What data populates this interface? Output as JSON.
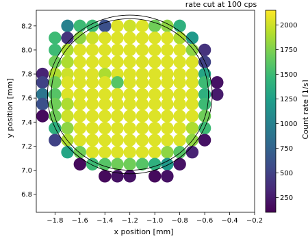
{
  "chart_data": {
    "type": "scatter",
    "title": "rate cut at 100 cps",
    "xlabel": "x position [mm]",
    "ylabel": "y position [mm]",
    "colorbar_label": "Count rate [1/s]",
    "xlim": [
      -1.95,
      -0.2
    ],
    "ylim": [
      6.65,
      8.33
    ],
    "xticks": [
      -1.8,
      -1.6,
      -1.4,
      -1.2,
      -1.0,
      -0.8,
      -0.6,
      -0.4,
      -0.2
    ],
    "xtick_labels": [
      "−1.8",
      "−1.6",
      "−1.4",
      "−1.2",
      "−1.0",
      "−0.8",
      "−0.6",
      "−0.4",
      "−0.2"
    ],
    "yticks": [
      6.8,
      7.0,
      7.2,
      7.4,
      7.6,
      7.8,
      8.0,
      8.2
    ],
    "ytick_labels": [
      "6.8",
      "7.0",
      "7.2",
      "7.4",
      "7.6",
      "7.8",
      "8.0",
      "8.2"
    ],
    "colorbar_range": [
      100,
      2150
    ],
    "colorbar_ticks": [
      250,
      500,
      750,
      1000,
      1250,
      1500,
      1750,
      2000
    ],
    "colorbar_tick_labels": [
      "250",
      "500",
      "750",
      "1000",
      "1250",
      "1500",
      "1750",
      "2000"
    ],
    "colormap": "viridis",
    "circles": [
      {
        "center": [
          -1.2,
          7.63
        ],
        "radius": 0.66
      },
      {
        "center": [
          -1.2,
          7.63
        ],
        "radius": 0.63
      }
    ],
    "grid": false,
    "points": [
      [
        -1.4,
        8.2,
        600
      ],
      [
        -1.2,
        8.2,
        2000
      ],
      [
        -1.0,
        8.2,
        1700
      ],
      [
        -1.7,
        8.2,
        1000
      ],
      [
        -1.6,
        8.2,
        1500
      ],
      [
        -1.5,
        8.2,
        1500
      ],
      [
        -1.3,
        8.2,
        2050
      ],
      [
        -1.1,
        8.2,
        2050
      ],
      [
        -0.9,
        8.2,
        1800
      ],
      [
        -0.8,
        8.2,
        1400
      ],
      [
        -1.8,
        8.1,
        1500
      ],
      [
        -1.7,
        8.1,
        400
      ],
      [
        -1.6,
        8.1,
        1800
      ],
      [
        -1.5,
        8.1,
        2000
      ],
      [
        -1.4,
        8.1,
        2050
      ],
      [
        -1.3,
        8.1,
        2050
      ],
      [
        -1.2,
        8.1,
        2050
      ],
      [
        -1.1,
        8.1,
        2050
      ],
      [
        -1.0,
        8.1,
        2050
      ],
      [
        -0.9,
        8.1,
        2050
      ],
      [
        -0.8,
        8.1,
        1900
      ],
      [
        -0.7,
        8.1,
        1200
      ],
      [
        -1.8,
        8.0,
        1500
      ],
      [
        -1.7,
        8.0,
        1900
      ],
      [
        -1.6,
        8.0,
        2050
      ],
      [
        -1.5,
        8.0,
        2050
      ],
      [
        -1.4,
        8.0,
        2050
      ],
      [
        -1.3,
        8.0,
        2050
      ],
      [
        -1.2,
        8.0,
        2050
      ],
      [
        -1.1,
        8.0,
        2050
      ],
      [
        -1.0,
        8.0,
        2050
      ],
      [
        -0.9,
        8.0,
        2050
      ],
      [
        -0.8,
        8.0,
        2050
      ],
      [
        -0.7,
        8.0,
        1800
      ],
      [
        -0.6,
        8.0,
        400
      ],
      [
        -1.8,
        7.9,
        1700
      ],
      [
        -1.7,
        7.9,
        1900
      ],
      [
        -1.6,
        7.9,
        2050
      ],
      [
        -1.5,
        7.9,
        2050
      ],
      [
        -1.4,
        7.9,
        2050
      ],
      [
        -1.3,
        7.9,
        2050
      ],
      [
        -1.2,
        7.9,
        2050
      ],
      [
        -1.1,
        7.9,
        2050
      ],
      [
        -1.0,
        7.9,
        2050
      ],
      [
        -0.9,
        7.9,
        2050
      ],
      [
        -0.8,
        7.9,
        2050
      ],
      [
        -0.7,
        7.9,
        2050
      ],
      [
        -0.6,
        7.9,
        500
      ],
      [
        -1.9,
        7.8,
        300
      ],
      [
        -1.8,
        7.8,
        1900
      ],
      [
        -1.7,
        7.8,
        2000
      ],
      [
        -1.6,
        7.8,
        2050
      ],
      [
        -1.5,
        7.8,
        2050
      ],
      [
        -1.4,
        7.8,
        1900
      ],
      [
        -1.3,
        7.8,
        2050
      ],
      [
        -1.2,
        7.8,
        2050
      ],
      [
        -1.1,
        7.8,
        2050
      ],
      [
        -1.0,
        7.8,
        2050
      ],
      [
        -0.9,
        7.8,
        2050
      ],
      [
        -0.8,
        7.8,
        2050
      ],
      [
        -0.7,
        7.8,
        2050
      ],
      [
        -0.6,
        7.8,
        1300
      ],
      [
        -1.9,
        7.73,
        500
      ],
      [
        -1.8,
        7.73,
        1700
      ],
      [
        -1.7,
        7.73,
        2050
      ],
      [
        -1.6,
        7.73,
        2050
      ],
      [
        -1.5,
        7.73,
        2050
      ],
      [
        -1.4,
        7.73,
        2050
      ],
      [
        -1.3,
        7.73,
        1600
      ],
      [
        -1.2,
        7.73,
        2050
      ],
      [
        -1.1,
        7.73,
        2050
      ],
      [
        -1.0,
        7.73,
        2050
      ],
      [
        -0.9,
        7.73,
        2050
      ],
      [
        -0.8,
        7.73,
        2050
      ],
      [
        -0.7,
        7.73,
        2050
      ],
      [
        -0.6,
        7.73,
        1500
      ],
      [
        -0.5,
        7.73,
        200
      ],
      [
        -1.9,
        7.63,
        900
      ],
      [
        -1.8,
        7.63,
        1600
      ],
      [
        -1.7,
        7.63,
        2050
      ],
      [
        -1.6,
        7.63,
        2050
      ],
      [
        -1.5,
        7.63,
        2050
      ],
      [
        -1.4,
        7.63,
        2050
      ],
      [
        -1.3,
        7.63,
        2050
      ],
      [
        -1.2,
        7.63,
        2050
      ],
      [
        -1.1,
        7.63,
        2050
      ],
      [
        -1.0,
        7.63,
        2050
      ],
      [
        -0.9,
        7.63,
        2050
      ],
      [
        -0.8,
        7.63,
        2050
      ],
      [
        -0.7,
        7.63,
        2050
      ],
      [
        -0.6,
        7.63,
        1400
      ],
      [
        -0.5,
        7.63,
        250
      ],
      [
        -1.9,
        7.55,
        600
      ],
      [
        -1.8,
        7.55,
        1700
      ],
      [
        -1.7,
        7.55,
        1900
      ],
      [
        -1.6,
        7.55,
        2050
      ],
      [
        -1.5,
        7.55,
        2050
      ],
      [
        -1.4,
        7.55,
        2050
      ],
      [
        -1.3,
        7.55,
        2050
      ],
      [
        -1.2,
        7.55,
        2050
      ],
      [
        -1.1,
        7.55,
        2050
      ],
      [
        -1.0,
        7.55,
        2050
      ],
      [
        -0.9,
        7.55,
        2050
      ],
      [
        -0.8,
        7.55,
        2050
      ],
      [
        -0.7,
        7.55,
        2050
      ],
      [
        -0.6,
        7.55,
        1500
      ],
      [
        -1.9,
        7.45,
        150
      ],
      [
        -1.8,
        7.45,
        1700
      ],
      [
        -1.7,
        7.45,
        2000
      ],
      [
        -1.6,
        7.45,
        2050
      ],
      [
        -1.5,
        7.45,
        2050
      ],
      [
        -1.4,
        7.45,
        2050
      ],
      [
        -1.3,
        7.45,
        2050
      ],
      [
        -1.2,
        7.45,
        2050
      ],
      [
        -1.1,
        7.45,
        2050
      ],
      [
        -1.0,
        7.45,
        2050
      ],
      [
        -0.9,
        7.45,
        2050
      ],
      [
        -0.8,
        7.45,
        2050
      ],
      [
        -0.7,
        7.45,
        2050
      ],
      [
        -0.6,
        7.45,
        1700
      ],
      [
        -1.8,
        7.35,
        1400
      ],
      [
        -1.7,
        7.35,
        1800
      ],
      [
        -1.6,
        7.35,
        2050
      ],
      [
        -1.5,
        7.35,
        2050
      ],
      [
        -1.4,
        7.35,
        2050
      ],
      [
        -1.3,
        7.35,
        2050
      ],
      [
        -1.2,
        7.35,
        2050
      ],
      [
        -1.1,
        7.35,
        2050
      ],
      [
        -1.0,
        7.35,
        2050
      ],
      [
        -0.9,
        7.35,
        2050
      ],
      [
        -0.8,
        7.35,
        2050
      ],
      [
        -0.7,
        7.35,
        1900
      ],
      [
        -0.6,
        7.35,
        1500
      ],
      [
        -1.8,
        7.25,
        500
      ],
      [
        -1.7,
        7.25,
        1900
      ],
      [
        -1.6,
        7.25,
        2050
      ],
      [
        -1.5,
        7.25,
        2050
      ],
      [
        -1.4,
        7.25,
        2050
      ],
      [
        -1.3,
        7.25,
        2050
      ],
      [
        -1.2,
        7.25,
        2050
      ],
      [
        -1.1,
        7.25,
        2050
      ],
      [
        -1.0,
        7.25,
        2050
      ],
      [
        -0.9,
        7.25,
        2050
      ],
      [
        -0.8,
        7.25,
        2050
      ],
      [
        -0.7,
        7.25,
        1800
      ],
      [
        -0.6,
        7.25,
        200
      ],
      [
        -1.7,
        7.15,
        1300
      ],
      [
        -1.6,
        7.15,
        1700
      ],
      [
        -1.5,
        7.15,
        2050
      ],
      [
        -1.4,
        7.15,
        2050
      ],
      [
        -1.3,
        7.15,
        2050
      ],
      [
        -1.2,
        7.15,
        2050
      ],
      [
        -1.1,
        7.15,
        2050
      ],
      [
        -1.0,
        7.15,
        2050
      ],
      [
        -0.9,
        7.15,
        1800
      ],
      [
        -0.8,
        7.15,
        1600
      ],
      [
        -0.7,
        7.15,
        300
      ],
      [
        -1.6,
        7.05,
        150
      ],
      [
        -1.5,
        7.05,
        1500
      ],
      [
        -1.4,
        7.05,
        1600
      ],
      [
        -1.3,
        7.05,
        1700
      ],
      [
        -1.2,
        7.05,
        1700
      ],
      [
        -1.1,
        7.05,
        1600
      ],
      [
        -1.0,
        7.05,
        1400
      ],
      [
        -0.9,
        7.05,
        1200
      ],
      [
        -0.8,
        7.05,
        200
      ],
      [
        -1.4,
        6.95,
        150
      ],
      [
        -1.3,
        6.95,
        200
      ],
      [
        -1.2,
        6.95,
        200
      ],
      [
        -1.0,
        6.95,
        150
      ],
      [
        -0.9,
        6.95,
        200
      ]
    ]
  }
}
